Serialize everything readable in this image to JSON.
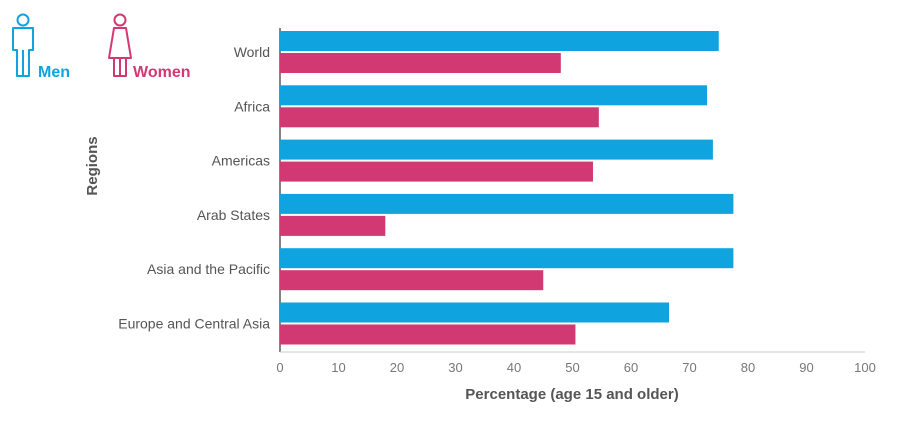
{
  "legend": {
    "items": [
      {
        "label": "Men",
        "color": "#0fa3e0",
        "icon": "man-icon"
      },
      {
        "label": "Women",
        "color": "#d23872",
        "icon": "woman-icon"
      }
    ]
  },
  "chart_data": {
    "type": "bar",
    "orientation": "horizontal",
    "title": "",
    "xlabel": "Percentage (age 15 and older)",
    "ylabel": "Regions",
    "xlim": [
      0,
      100
    ],
    "xticks": [
      0,
      10,
      20,
      30,
      40,
      50,
      60,
      70,
      80,
      90,
      100
    ],
    "grid": false,
    "legend_position": "top-left",
    "categories": [
      "World",
      "Africa",
      "Americas",
      "Arab States",
      "Asia and the Pacific",
      "Europe and Central Asia"
    ],
    "series": [
      {
        "name": "Men",
        "color": "#0fa3e0",
        "values": [
          75,
          73,
          74,
          77.5,
          77.5,
          66.5
        ]
      },
      {
        "name": "Women",
        "color": "#d23872",
        "values": [
          48,
          54.5,
          53.5,
          18,
          45,
          50.5
        ]
      }
    ]
  }
}
